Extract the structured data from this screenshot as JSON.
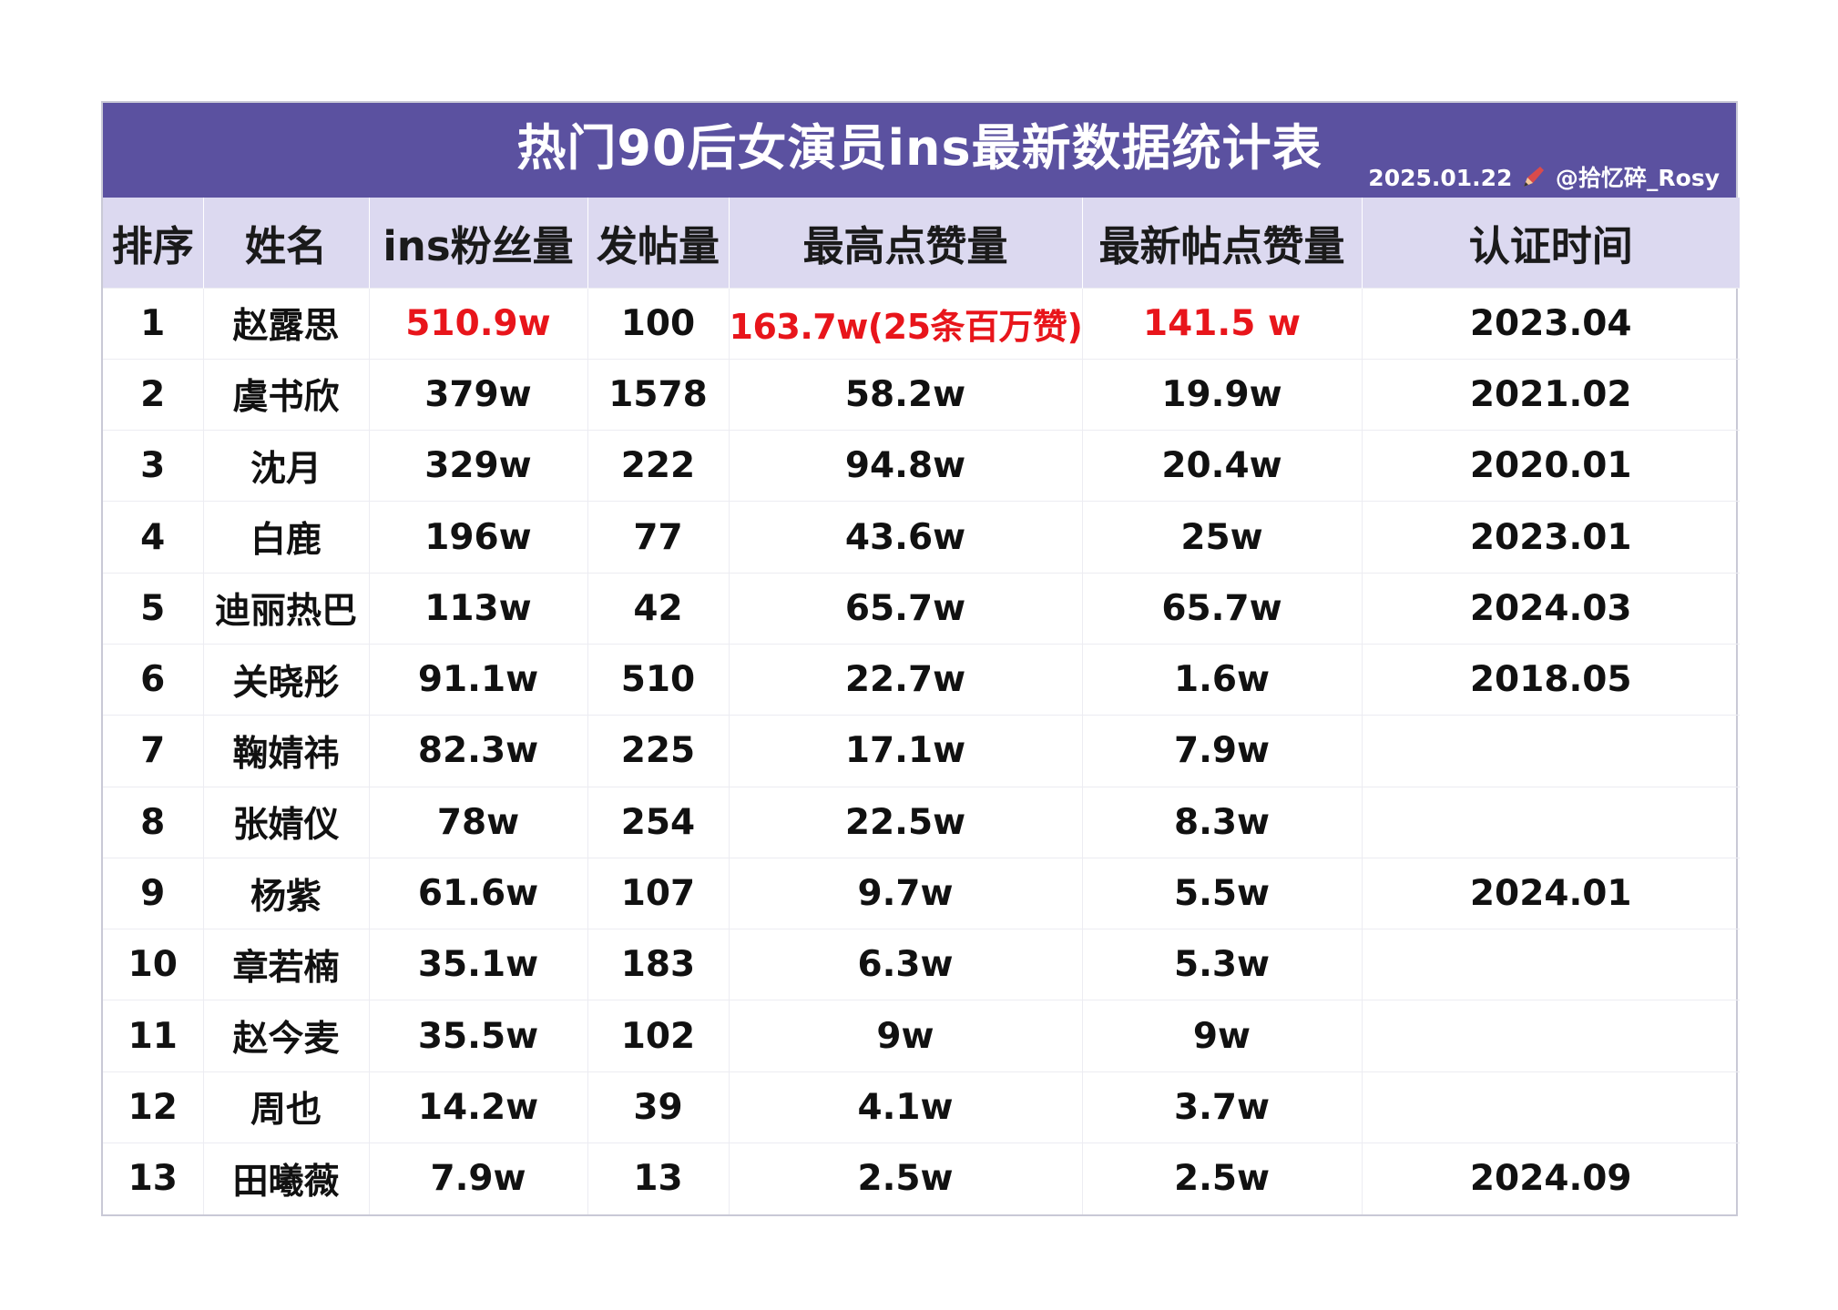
{
  "title": "热门90后女演员ins最新数据统计表",
  "credit": "2025.01.22 @拾忆碎_Rosy",
  "credit_icon": "pencil-icon",
  "colors": {
    "title_bg": "#5b51a0",
    "header_bg": "#dcd9f0",
    "highlight": "#e8151b"
  },
  "chart_data": {
    "type": "table",
    "title": "热门90后女演员ins最新数据统计表",
    "columns": [
      "排序",
      "姓名",
      "ins粉丝量",
      "发帖量",
      "最高点赞量",
      "最新帖点赞量",
      "认证时间"
    ],
    "rows": [
      [
        "1",
        "赵露思",
        "510.9w",
        "100",
        "163.7w(25条百万赞)",
        "141.5 w",
        "2023.04"
      ],
      [
        "2",
        "虞书欣",
        "379w",
        "1578",
        "58.2w",
        "19.9w",
        "2021.02"
      ],
      [
        "3",
        "沈月",
        "329w",
        "222",
        "94.8w",
        "20.4w",
        "2020.01"
      ],
      [
        "4",
        "白鹿",
        "196w",
        "77",
        "43.6w",
        "25w",
        "2023.01"
      ],
      [
        "5",
        "迪丽热巴",
        "113w",
        "42",
        "65.7w",
        "65.7w",
        "2024.03"
      ],
      [
        "6",
        "关晓彤",
        "91.1w",
        "510",
        "22.7w",
        "1.6w",
        "2018.05"
      ],
      [
        "7",
        "鞠婧祎",
        "82.3w",
        "225",
        "17.1w",
        "7.9w",
        ""
      ],
      [
        "8",
        "张婧仪",
        "78w",
        "254",
        "22.5w",
        "8.3w",
        ""
      ],
      [
        "9",
        "杨紫",
        "61.6w",
        "107",
        "9.7w",
        "5.5w",
        "2024.01"
      ],
      [
        "10",
        "章若楠",
        "35.1w",
        "183",
        "6.3w",
        "5.3w",
        ""
      ],
      [
        "11",
        "赵今麦",
        "35.5w",
        "102",
        "9w",
        "9w",
        ""
      ],
      [
        "12",
        "周也",
        "14.2w",
        "39",
        "4.1w",
        "3.7w",
        ""
      ],
      [
        "13",
        "田曦薇",
        "7.9w",
        "13",
        "2.5w",
        "2.5w",
        "2024.09"
      ]
    ],
    "highlighted_row": 0
  }
}
